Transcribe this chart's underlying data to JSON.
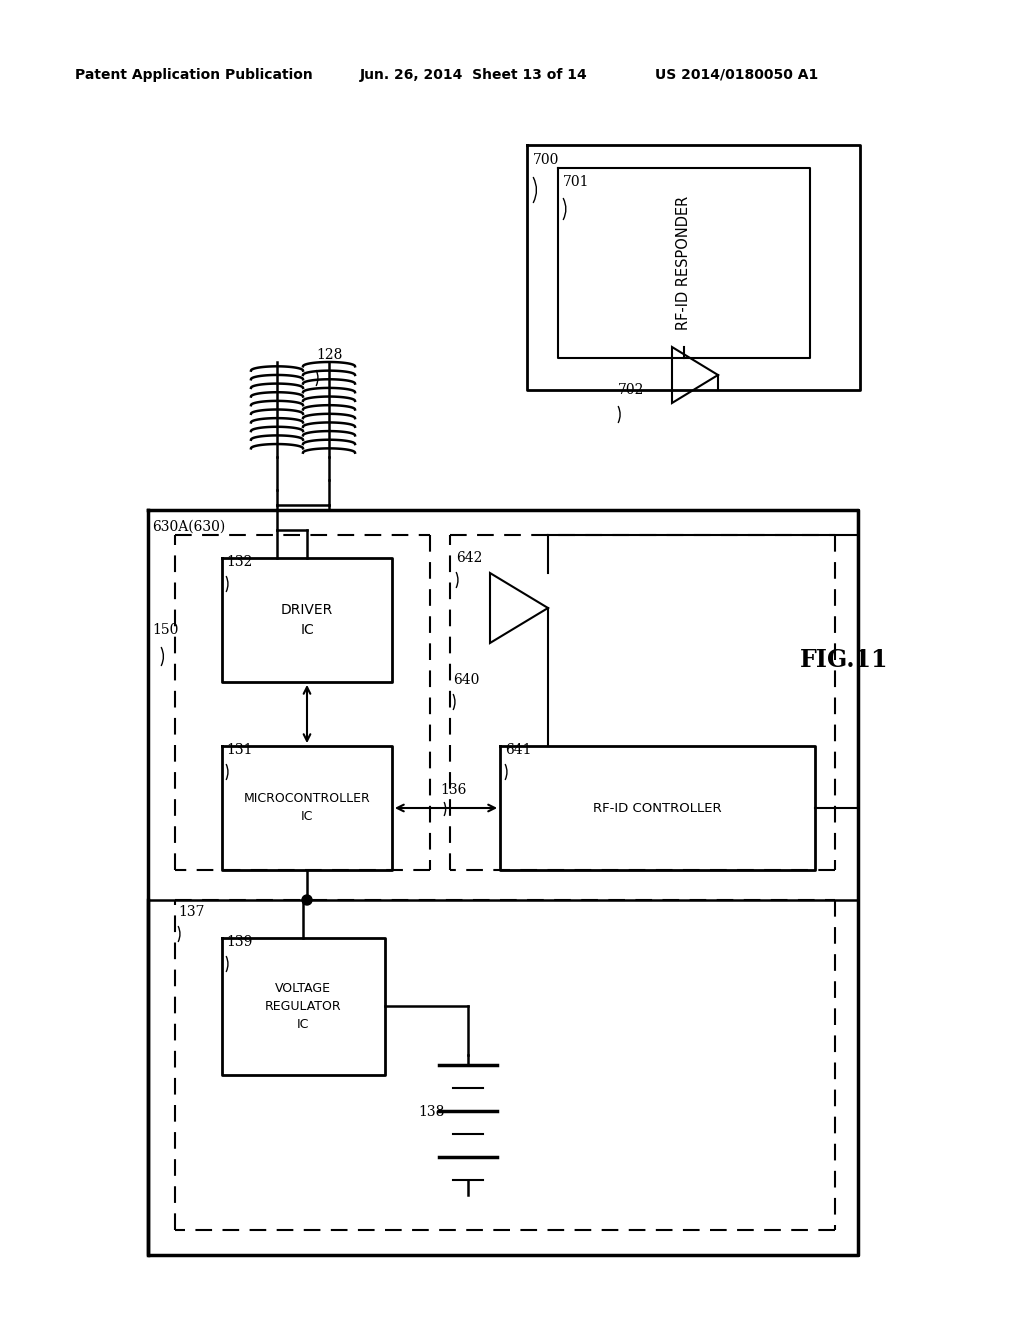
{
  "title_left": "Patent Application Publication",
  "title_mid": "Jun. 26, 2014  Sheet 13 of 14",
  "title_right": "US 2014/0180050 A1",
  "fig_label": "FIG.11",
  "bg_color": "#ffffff",
  "line_color": "#000000"
}
